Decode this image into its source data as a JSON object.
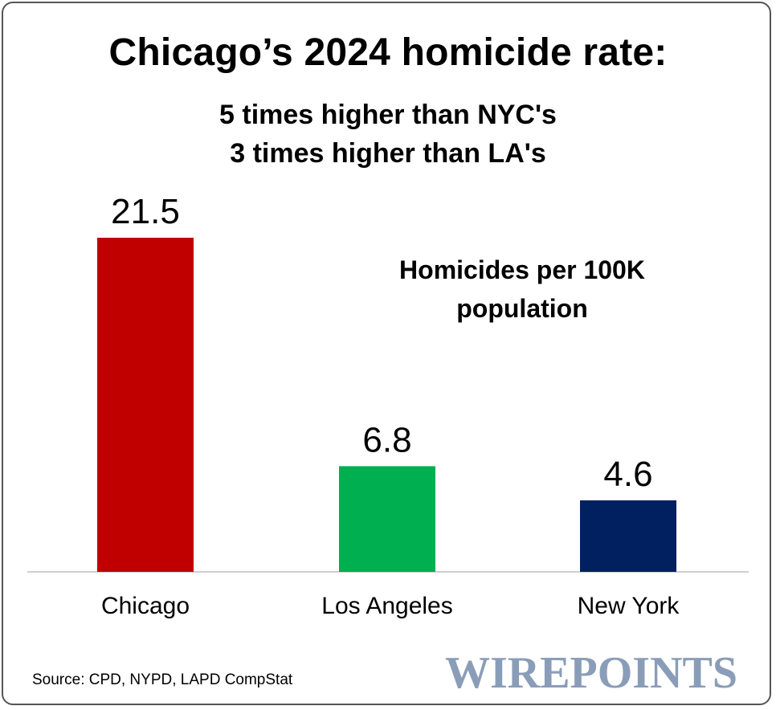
{
  "header": {
    "title": "Chicago’s 2024 homicide rate:",
    "subtitle_line1": "5 times higher than NYC's",
    "subtitle_line2": "3 times higher than LA's"
  },
  "annotation": {
    "metric_line1": "Homicides per 100K",
    "metric_line2": "population"
  },
  "footer": {
    "source": "Source: CPD, NYPD, LAPD CompStat",
    "brand": "WIREPOINTS"
  },
  "colors": {
    "chicago": "#c00000",
    "los_angeles": "#00b050",
    "new_york": "#002060",
    "brand": "#8a9db8",
    "axis": "#bfbfbf"
  },
  "chart_data": {
    "type": "bar",
    "title": "Chicago’s 2024 homicide rate:",
    "ylabel": "Homicides per 100K population",
    "xlabel": "",
    "categories": [
      "Chicago",
      "Los Angeles",
      "New York"
    ],
    "values": [
      21.5,
      6.8,
      4.6
    ],
    "value_labels": [
      "21.5",
      "6.8",
      "4.6"
    ],
    "ylim": [
      0,
      21.5
    ],
    "grid": false,
    "legend": "none"
  }
}
